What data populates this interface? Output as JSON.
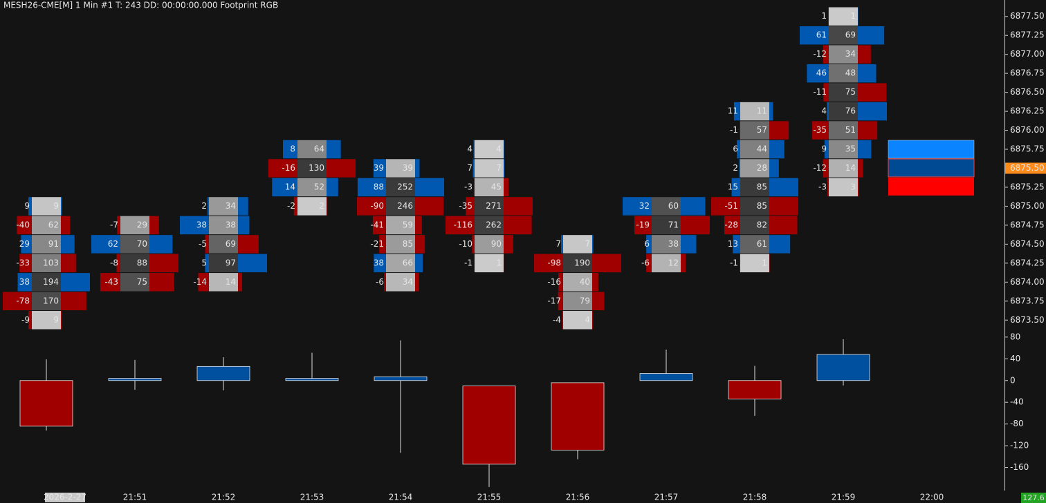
{
  "chart_data": [
    {
      "type": "footprint",
      "title": "MESH26-CME[M]  1 Min  #1 T: 243 DD: 00:00:00.000 Footprint RGB",
      "categories": [
        "2026-2-27",
        "21:51",
        "21:52",
        "21:53",
        "21:54",
        "21:55",
        "21:56",
        "21:57",
        "21:58",
        "21:59",
        "22:00"
      ],
      "ylim": [
        6873.375,
        6877.625
      ],
      "yticks": [
        {
          "value": 6877.5,
          "label": "6877.50"
        },
        {
          "value": 6877.25,
          "label": "6877.25"
        },
        {
          "value": 6877,
          "label": "6877.00"
        },
        {
          "value": 6876.75,
          "label": "6876.75"
        },
        {
          "value": 6876.5,
          "label": "6876.50"
        },
        {
          "value": 6876.25,
          "label": "6876.25"
        },
        {
          "value": 6876,
          "label": "6876.00"
        },
        {
          "value": 6875.75,
          "label": "6875.75"
        },
        {
          "value": 6875.5,
          "label": "6875.50"
        },
        {
          "value": 6875.25,
          "label": "6875.25"
        },
        {
          "value": 6875,
          "label": "6875.00"
        },
        {
          "value": 6874.75,
          "label": "6874.75"
        },
        {
          "value": 6874.5,
          "label": "6874.50"
        },
        {
          "value": 6874.25,
          "label": "6874.25"
        },
        {
          "value": 6874,
          "label": "6874.00"
        },
        {
          "value": 6873.75,
          "label": "6873.75"
        },
        {
          "value": 6873.5,
          "label": "6873.50"
        }
      ],
      "current_price": {
        "value": 6875.5,
        "label": "6875.50"
      },
      "bars": [
        {
          "prices": [
            6875,
            6874.75,
            6874.5,
            6874.25,
            6874,
            6873.75,
            6873.5
          ],
          "delta": [
            9,
            -40,
            29,
            -33,
            38,
            -78,
            -9
          ],
          "volume": [
            9,
            62,
            91,
            103,
            194,
            170,
            9
          ]
        },
        {
          "prices": [
            6874.75,
            6874.5,
            6874.25,
            6874
          ],
          "delta": [
            -7,
            62,
            -8,
            -43
          ],
          "volume": [
            29,
            70,
            88,
            75
          ]
        },
        {
          "prices": [
            6875,
            6874.75,
            6874.5,
            6874.25,
            6874
          ],
          "delta": [
            2,
            38,
            -5,
            5,
            -14
          ],
          "volume": [
            34,
            38,
            69,
            97,
            14
          ]
        },
        {
          "prices": [
            6875.75,
            6875.5,
            6875.25,
            6875
          ],
          "delta": [
            8,
            -16,
            14,
            -2
          ],
          "volume": [
            64,
            130,
            52,
            2
          ]
        },
        {
          "prices": [
            6875.5,
            6875.25,
            6875,
            6874.75,
            6874.5,
            6874.25,
            6874
          ],
          "delta": [
            39,
            88,
            -90,
            -41,
            -21,
            38,
            -6
          ],
          "volume": [
            39,
            252,
            246,
            59,
            85,
            66,
            34
          ]
        },
        {
          "prices": [
            6875.75,
            6875.5,
            6875.25,
            6875,
            6874.75,
            6874.5,
            6874.25
          ],
          "delta": [
            4,
            7,
            -3,
            -35,
            -116,
            -10,
            -1
          ],
          "volume": [
            4,
            7,
            45,
            271,
            262,
            90,
            1
          ]
        },
        {
          "prices": [
            6874.5,
            6874.25,
            6874,
            6873.75,
            6873.5
          ],
          "delta": [
            7,
            -98,
            -16,
            -17,
            -4
          ],
          "volume": [
            7,
            190,
            40,
            79,
            4
          ]
        },
        {
          "prices": [
            6875,
            6874.75,
            6874.5,
            6874.25
          ],
          "delta": [
            32,
            -19,
            6,
            -6
          ],
          "volume": [
            60,
            71,
            38,
            12
          ]
        },
        {
          "prices": [
            6876.25,
            6876,
            6875.75,
            6875.5,
            6875.25,
            6875,
            6874.75,
            6874.5,
            6874.25
          ],
          "delta": [
            11,
            -1,
            6,
            2,
            15,
            -51,
            -28,
            13,
            -1
          ],
          "volume": [
            11,
            57,
            44,
            28,
            85,
            85,
            82,
            61,
            1
          ]
        },
        {
          "prices": [
            6877.5,
            6877.25,
            6877,
            6876.75,
            6876.5,
            6876.25,
            6876,
            6875.75,
            6875.5,
            6875.25
          ],
          "delta": [
            1,
            61,
            -12,
            46,
            -11,
            4,
            -35,
            9,
            -12,
            -3
          ],
          "volume": [
            1,
            69,
            34,
            48,
            75,
            76,
            51,
            35,
            14,
            3
          ]
        }
      ]
    },
    {
      "type": "candlestick",
      "ylim": [
        -200,
        90
      ],
      "yticks": [
        80,
        40,
        0,
        -40,
        -80,
        -120,
        -160
      ],
      "open": [
        0,
        0,
        0,
        0,
        0,
        -10,
        -4,
        0,
        0,
        0
      ],
      "close": [
        -84,
        4,
        26,
        4,
        7,
        -154,
        -128,
        13,
        -34,
        48
      ],
      "high": [
        39,
        38,
        43,
        51,
        74,
        -10,
        -4,
        57,
        27,
        76
      ],
      "low": [
        -92,
        -17,
        -18,
        0,
        -133,
        -196,
        -145,
        0,
        -65,
        -9
      ],
      "last_label": "127.6"
    }
  ]
}
